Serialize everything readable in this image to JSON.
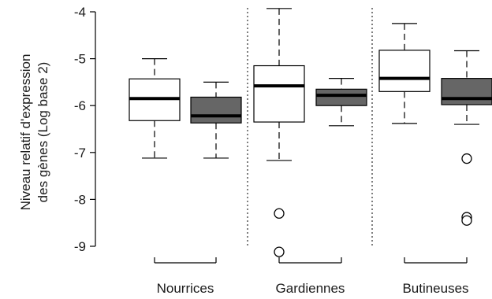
{
  "chart_data": {
    "type": "boxplot",
    "ylabel_line1": "Niveau relatif d'expression",
    "ylabel_line2": "des gènes (Log base 2)",
    "ylim": [
      -9.1,
      -4.0
    ],
    "yticks": [
      -4,
      -5,
      -6,
      -7,
      -8,
      -9
    ],
    "ytick_labels": [
      "-4",
      "-5",
      "-6",
      "-7",
      "-8",
      "-9"
    ],
    "groups": [
      {
        "label": "Nourrices",
        "boxes": [
          {
            "fill": "#ffffff",
            "whisker_low": -7.12,
            "q1": -6.32,
            "median": -5.85,
            "q3": -5.43,
            "whisker_high": -5.0,
            "outliers": []
          },
          {
            "fill": "#666666",
            "whisker_low": -7.12,
            "q1": -6.37,
            "median": -6.22,
            "q3": -5.82,
            "whisker_high": -5.5,
            "outliers": []
          }
        ]
      },
      {
        "label": "Gardiennes",
        "boxes": [
          {
            "fill": "#ffffff",
            "whisker_low": -7.17,
            "q1": -6.35,
            "median": -5.58,
            "q3": -5.15,
            "whisker_high": -3.93,
            "outliers": [
              -8.3,
              -9.12
            ]
          },
          {
            "fill": "#666666",
            "whisker_low": -6.43,
            "q1": -6.0,
            "median": -5.78,
            "q3": -5.65,
            "whisker_high": -5.42,
            "outliers": []
          }
        ]
      },
      {
        "label": "Butineuses",
        "boxes": [
          {
            "fill": "#ffffff",
            "whisker_low": -6.38,
            "q1": -5.7,
            "median": -5.42,
            "q3": -4.82,
            "whisker_high": -4.25,
            "outliers": []
          },
          {
            "fill": "#666666",
            "whisker_low": -6.4,
            "q1": -5.98,
            "median": -5.85,
            "q3": -5.42,
            "whisker_high": -4.83,
            "outliers": [
              -7.13,
              -8.38,
              -8.45
            ]
          }
        ]
      }
    ],
    "group_separators": "dotted",
    "grid": false,
    "legend": "none"
  }
}
